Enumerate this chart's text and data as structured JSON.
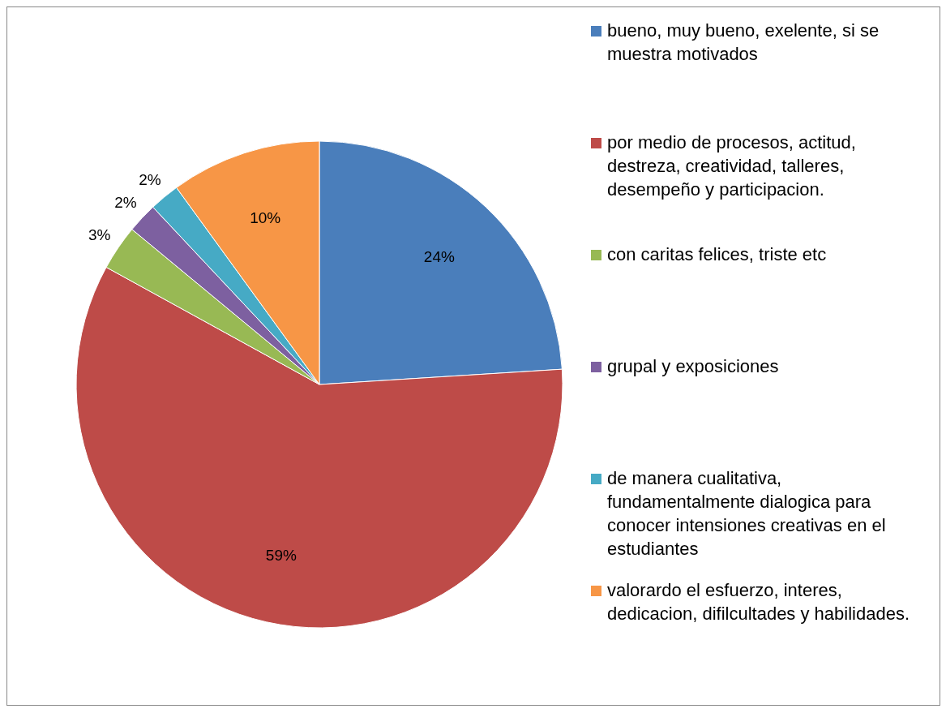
{
  "chart_data": {
    "type": "pie",
    "categories": [
      "bueno, muy bueno, exelente, si se muestra motivados",
      "por medio de procesos, actitud, destreza, creatividad, talleres, desempeño y participacion.",
      "con caritas felices, triste etc",
      "grupal y exposiciones",
      "de manera cualitativa, fundamentalmente dialogica para conocer intensiones creativas en el estudiantes",
      "valorardo el esfuerzo, interes, dedicacion, difilcultades  y habilidades."
    ],
    "values": [
      24,
      59,
      3,
      2,
      2,
      10
    ],
    "colors": [
      "#4a7ebb",
      "#be4b48",
      "#98b954",
      "#7d60a0",
      "#46aac5",
      "#f79646"
    ],
    "value_labels": [
      "24%",
      "59%",
      "3%",
      "2%",
      "2%",
      "10%"
    ],
    "legend": "right"
  }
}
